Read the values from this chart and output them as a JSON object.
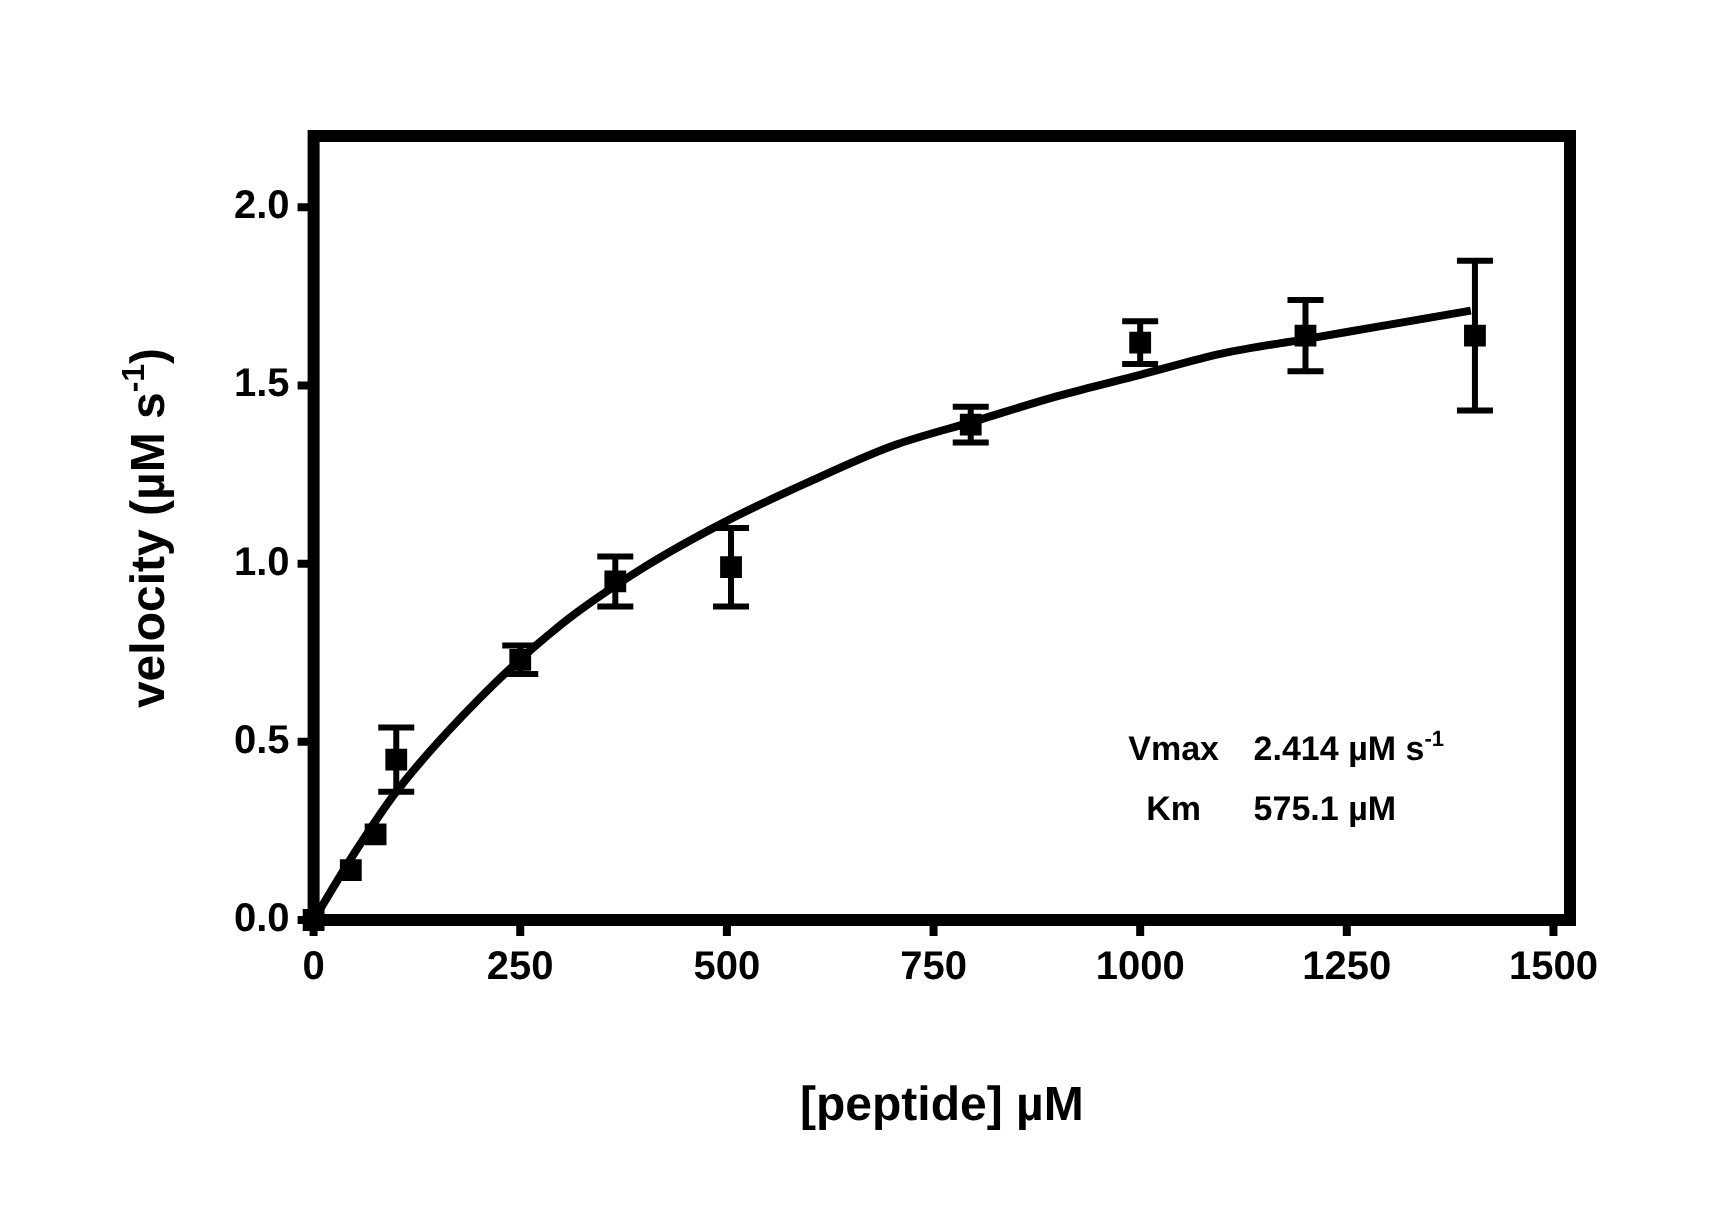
{
  "chart_data": {
    "type": "scatter",
    "xlabel": "[peptide] µM",
    "ylabel": "velocity (µM s$^{-1}$)",
    "xlim": [
      0,
      1520
    ],
    "xticks": [
      0,
      250,
      500,
      750,
      1000,
      1250,
      1500
    ],
    "ylim": [
      0,
      2.2
    ],
    "yticks": [
      {
        "value": 0,
        "label": "0.0"
      },
      0.5,
      {
        "value": 1,
        "label": "1.0"
      },
      1.5,
      {
        "value": 2,
        "label": "2.0"
      }
    ],
    "grid": false,
    "legend": false,
    "marker": "square",
    "annotations": [
      "Vmax   2.414 µM s$^{-1}$",
      "Km     575.1 µM"
    ],
    "series": [
      {
        "color": "#000000",
        "x": [
          0,
          45,
          75,
          100,
          250,
          365,
          505,
          795,
          1000,
          1200,
          1405
        ],
        "values": [
          0,
          0.14,
          0.24,
          0.45,
          0.73,
          0.95,
          0.99,
          1.39,
          1.62,
          1.64,
          1.64
        ],
        "errors": [
          null,
          null,
          null,
          0.09,
          0.04,
          0.07,
          0.11,
          0.05,
          0.06,
          0.1,
          0.21
        ]
      },
      {
        "type": "line",
        "color": "#000000",
        "line_style": "solid",
        "marker": "none",
        "x": [
          0,
          50,
          100,
          200,
          300,
          400,
          500,
          600,
          700,
          800,
          900,
          1000,
          1100,
          1200,
          1300,
          1400
        ],
        "values": [
          0,
          0.19,
          0.36,
          0.62,
          0.83,
          0.99,
          1.12,
          1.23,
          1.33,
          1.4,
          1.47,
          1.53,
          1.59,
          1.63,
          1.67,
          1.71
        ]
      }
    ]
  }
}
